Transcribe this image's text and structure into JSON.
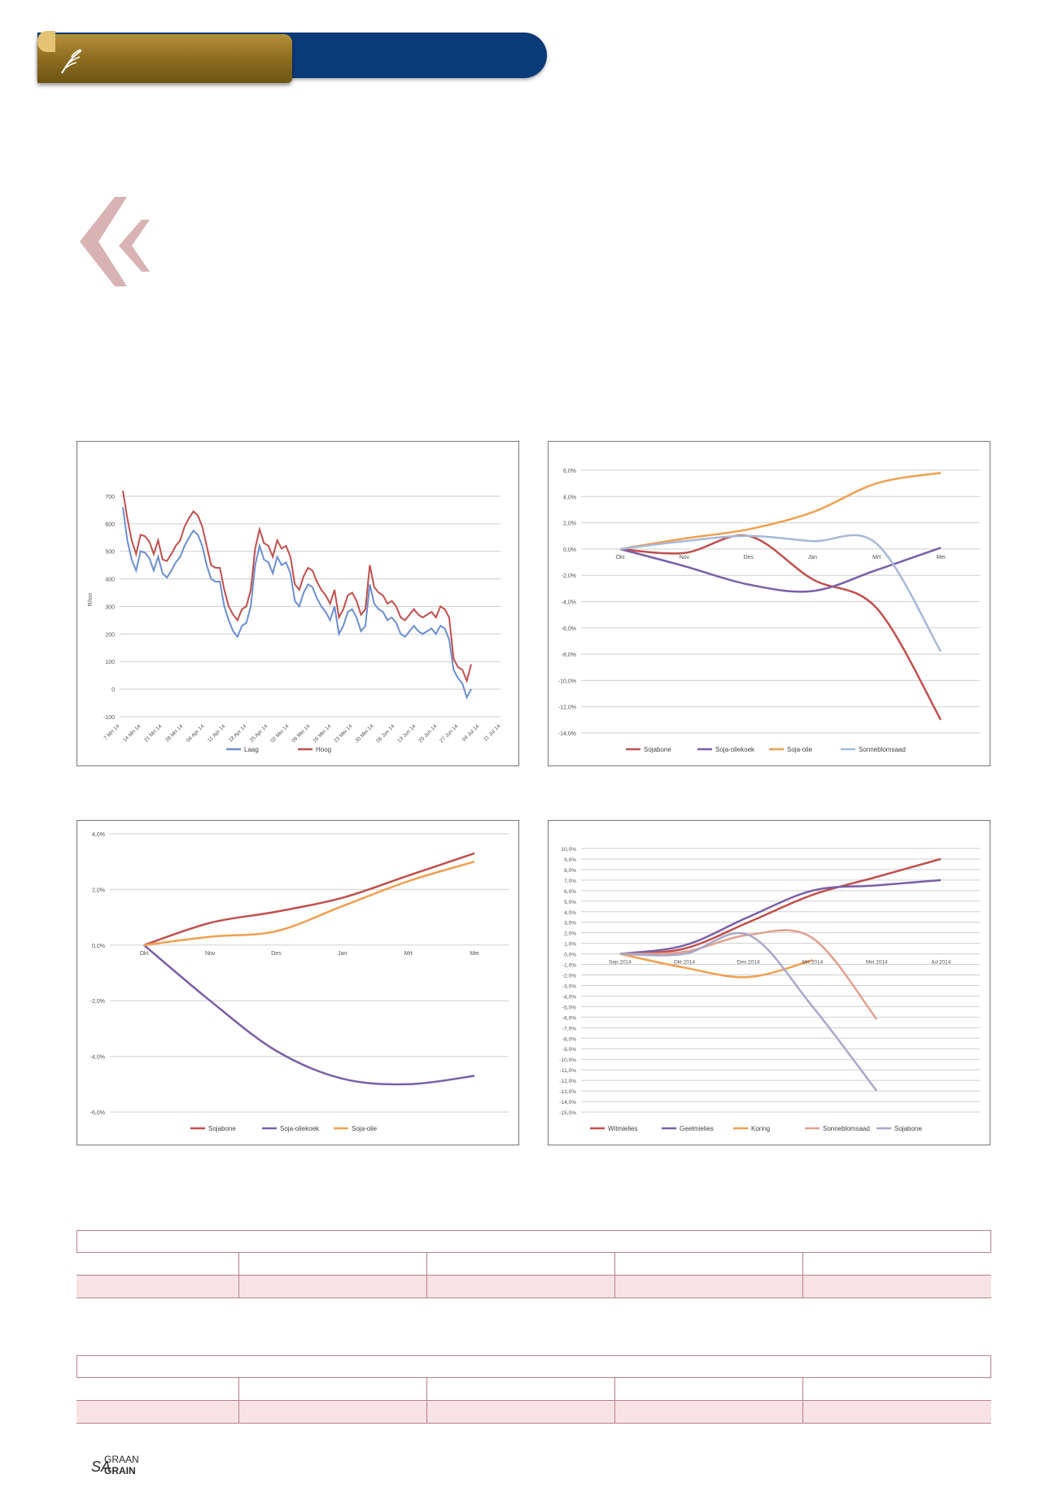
{
  "colors": {
    "banner_blue": "#0b3a78",
    "banner_gold": "#9a7a2a",
    "quote_mark": "#d9b3b3",
    "table_border": "#b98089",
    "table_alt_row": "#f7e3e6"
  },
  "header": {
    "logo_icon": "wheat-ear-icon"
  },
  "footer_logo": {
    "prefix": "SA",
    "top": "GRAAN",
    "bottom": "GRAIN"
  },
  "chart_data": [
    {
      "type": "line",
      "ylabel": "R/ton",
      "ylim": [
        -100,
        750
      ],
      "yticks": [
        -100,
        0,
        100,
        200,
        300,
        400,
        500,
        600,
        700
      ],
      "x_ticks": [
        "7 Mrt 14",
        "14 Mrt 14",
        "21 Mrt 14",
        "28 Mrt 14",
        "04 Apr 14",
        "11 Apr 14",
        "18 Apr 14",
        "25 Apr 14",
        "02 Mei 14",
        "09 Mei 14",
        "16 Mei 14",
        "23 Mei 14",
        "30 Mei 14",
        "06 Jun 14",
        "13 Jun 14",
        "20 Jun 14",
        "27 Jun 14",
        "04 Jul 14",
        "11 Jul 14"
      ],
      "series": [
        {
          "name": "Laag",
          "color": "#6c8fcf",
          "values": [
            660,
            540,
            470,
            430,
            500,
            495,
            475,
            430,
            480,
            420,
            405,
            430,
            460,
            480,
            520,
            550,
            575,
            560,
            520,
            450,
            400,
            390,
            390,
            300,
            250,
            210,
            190,
            230,
            240,
            300,
            450,
            520,
            470,
            460,
            420,
            480,
            450,
            460,
            420,
            320,
            300,
            350,
            380,
            370,
            330,
            300,
            280,
            250,
            300,
            200,
            230,
            280,
            290,
            260,
            210,
            230,
            380,
            310,
            290,
            280,
            250,
            260,
            240,
            200,
            190,
            210,
            230,
            210,
            200,
            210,
            220,
            200,
            230,
            220,
            180,
            70,
            40,
            20,
            -30,
            0
          ]
        },
        {
          "name": "Hoog",
          "color": "#c0504d",
          "values": [
            720,
            620,
            540,
            490,
            560,
            555,
            535,
            490,
            540,
            470,
            465,
            490,
            520,
            540,
            590,
            620,
            645,
            630,
            590,
            520,
            450,
            440,
            440,
            360,
            300,
            270,
            250,
            290,
            300,
            360,
            510,
            580,
            530,
            520,
            480,
            540,
            510,
            520,
            480,
            380,
            360,
            410,
            440,
            430,
            390,
            360,
            340,
            310,
            360,
            260,
            290,
            340,
            350,
            320,
            270,
            290,
            450,
            370,
            350,
            340,
            310,
            320,
            300,
            260,
            250,
            270,
            290,
            270,
            260,
            270,
            280,
            260,
            300,
            290,
            260,
            110,
            80,
            70,
            30,
            90
          ]
        }
      ],
      "legend": "bottom"
    },
    {
      "type": "line",
      "categories": [
        "Okt",
        "Nov",
        "Des",
        "Jan",
        "Mrt",
        "Mei"
      ],
      "ylim": [
        -14,
        6
      ],
      "yticks": [
        "6,0%",
        "4,0%",
        "2,0%",
        "0,0%",
        "-2,0%",
        "-4,0%",
        "-6,0%",
        "-8,0%",
        "-10,0%",
        "-12,0%",
        "-14,0%"
      ],
      "series": [
        {
          "name": "Sojabone",
          "color": "#c0504d",
          "values": [
            0,
            -0.3,
            1.0,
            -2.3,
            -4.5,
            -13.0
          ]
        },
        {
          "name": "Soja-oliekoek",
          "color": "#7b5fa6",
          "values": [
            0,
            -1.3,
            -2.7,
            -3.2,
            -1.6,
            0.1
          ]
        },
        {
          "name": "Soja-olie",
          "color": "#f0a050",
          "values": [
            0,
            0.8,
            1.5,
            2.8,
            5.0,
            5.8
          ]
        },
        {
          "name": "Sonneblomsaad",
          "color": "#a8b8d8",
          "values": [
            0,
            0.6,
            1.0,
            0.6,
            0.4,
            -7.8
          ]
        }
      ],
      "legend": "bottom"
    },
    {
      "type": "line",
      "categories": [
        "Okt",
        "Nov",
        "Des",
        "Jan",
        "Mrt",
        "Mei"
      ],
      "ylim": [
        -6,
        4
      ],
      "yticks": [
        "4,0%",
        "2,0%",
        "0,0%",
        "-2,0%",
        "-4,0%",
        "-6,0%"
      ],
      "series": [
        {
          "name": "Sojabone",
          "color": "#c0504d",
          "values": [
            0,
            0.8,
            1.2,
            1.7,
            2.5,
            3.3
          ]
        },
        {
          "name": "Soja-oliekoek",
          "color": "#7b5fa6",
          "values": [
            0,
            -2.0,
            -3.8,
            -4.8,
            -5.0,
            -4.7
          ]
        },
        {
          "name": "Soja-olie",
          "color": "#f0a050",
          "values": [
            0,
            0.3,
            0.5,
            1.4,
            2.3,
            3.0
          ]
        }
      ],
      "legend": "bottom"
    },
    {
      "type": "line",
      "categories": [
        "Sep 2014",
        "Okt 2014",
        "Des 2014",
        "Mrt 2014",
        "Mei 2014",
        "Jul 2014"
      ],
      "ylim": [
        -15,
        10
      ],
      "yticks": [
        "10,0%",
        "9,0%",
        "8,0%",
        "7,0%",
        "6,0%",
        "5,0%",
        "4,0%",
        "3,0%",
        "2,0%",
        "1,0%",
        "0,0%",
        "-1,0%",
        "-2,0%",
        "-3,0%",
        "-4,0%",
        "-5,0%",
        "-6,0%",
        "-7,0%",
        "-8,0%",
        "-9,0%",
        "-10,0%",
        "-11,0%",
        "-12,0%",
        "-13,0%",
        "-14,0%",
        "-15,0%"
      ],
      "series": [
        {
          "name": "Witmielies",
          "color": "#c0504d",
          "values": [
            0,
            0.5,
            3.0,
            5.6,
            7.3,
            9.0
          ]
        },
        {
          "name": "Geelmielies",
          "color": "#7b5fa6",
          "values": [
            0,
            0.8,
            3.5,
            6.0,
            6.5,
            7.0
          ]
        },
        {
          "name": "Koring",
          "color": "#f0a050",
          "values": [
            0,
            -1.3,
            -2.2,
            -0.6,
            null,
            null
          ]
        },
        {
          "name": "Sonneblomsaad",
          "color": "#e0a090",
          "values": [
            0,
            0.2,
            1.8,
            1.5,
            -6.2,
            null
          ]
        },
        {
          "name": "Sojabone",
          "color": "#a8a8c8",
          "values": [
            0,
            0.0,
            1.8,
            -5.0,
            -13.0,
            null
          ]
        }
      ],
      "legend": "bottom"
    }
  ]
}
